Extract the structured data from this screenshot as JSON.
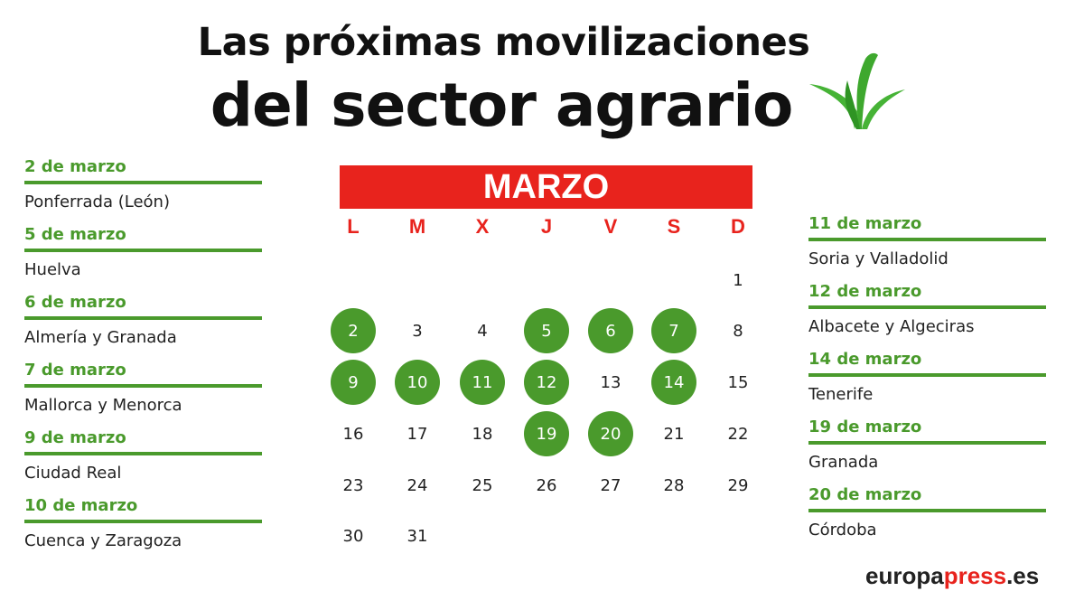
{
  "title": {
    "line1": "Las próximas movilizaciones",
    "line2": "del sector agrario"
  },
  "left_events": [
    {
      "date": "2 de marzo",
      "place": "Ponferrada (León)"
    },
    {
      "date": "5 de marzo",
      "place": "Huelva"
    },
    {
      "date": "6 de marzo",
      "place": "Almería y Granada"
    },
    {
      "date": "7 de marzo",
      "place": "Mallorca y Menorca"
    },
    {
      "date": "9 de marzo",
      "place": "Ciudad Real"
    },
    {
      "date": "10 de marzo",
      "place": "Cuenca y Zaragoza"
    }
  ],
  "right_events": [
    {
      "date": "11 de marzo",
      "place": "Soria y Valladolid"
    },
    {
      "date": "12 de marzo",
      "place": "Albacete y Algeciras"
    },
    {
      "date": "14 de marzo",
      "place": "Tenerife"
    },
    {
      "date": "19 de marzo",
      "place": "Granada"
    },
    {
      "date": "20 de marzo",
      "place": "Córdoba"
    }
  ],
  "calendar": {
    "month": "MARZO",
    "weekdays": [
      "L",
      "M",
      "X",
      "J",
      "V",
      "S",
      "D"
    ],
    "weeks": [
      [
        "",
        "",
        "",
        "",
        "",
        "",
        "1"
      ],
      [
        "2",
        "3",
        "4",
        "5",
        "6",
        "7",
        "8"
      ],
      [
        "9",
        "10",
        "11",
        "12",
        "13",
        "14",
        "15"
      ],
      [
        "16",
        "17",
        "18",
        "19",
        "20",
        "21",
        "22"
      ],
      [
        "23",
        "24",
        "25",
        "26",
        "27",
        "28",
        "29"
      ],
      [
        "30",
        "31",
        "",
        "",
        "",
        "",
        ""
      ]
    ],
    "highlighted": [
      "2",
      "5",
      "6",
      "7",
      "9",
      "10",
      "11",
      "12",
      "14",
      "19",
      "20"
    ]
  },
  "logo": {
    "main": "europa",
    "accent": "press",
    "suffix": ".es"
  },
  "colors": {
    "green": "#4a9a2c",
    "red": "#e8231d"
  },
  "icons": {
    "plant": "plant-sprout-icon"
  }
}
